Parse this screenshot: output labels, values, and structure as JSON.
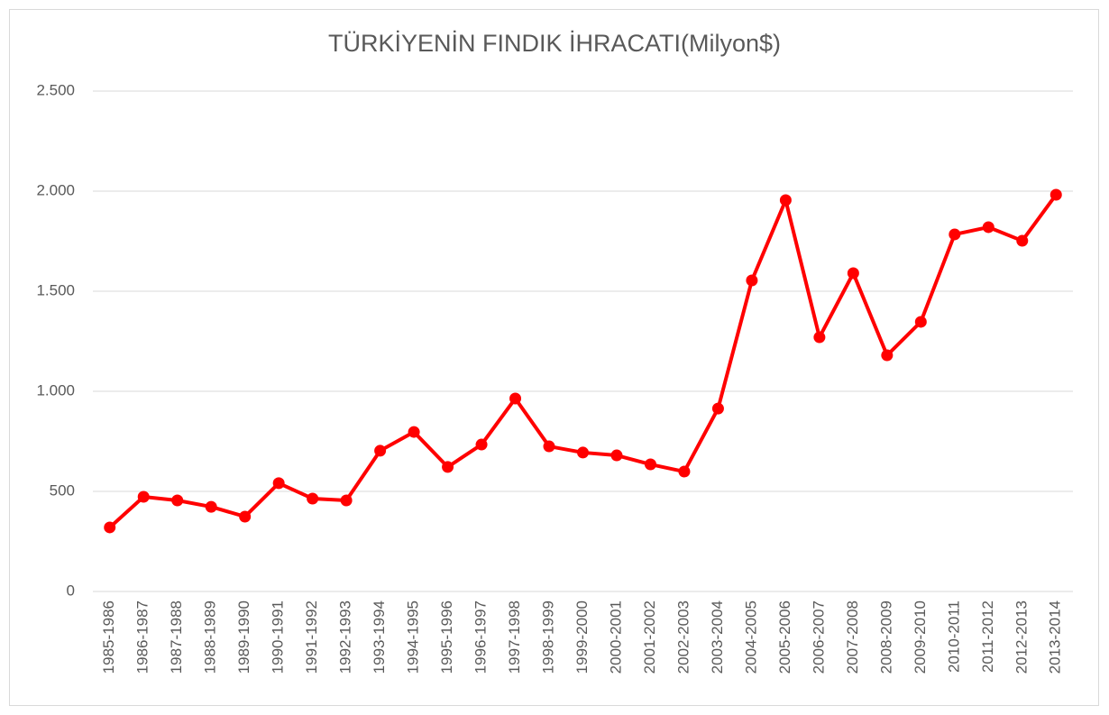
{
  "chart_data": {
    "type": "line",
    "title": "TÜRKİYENİN FINDIK İHRACATI(Milyon$)",
    "categories": [
      "1985-1986",
      "1986-1987",
      "1987-1988",
      "1988-1989",
      "1989-1990",
      "1990-1991",
      "1991-1992",
      "1992-1993",
      "1993-1994",
      "1994-1995",
      "1995-1996",
      "1996-1997",
      "1997-1998",
      "1998-1999",
      "1999-2000",
      "2000-2001",
      "2001-2002",
      "2002-2003",
      "2003-2004",
      "2004-2005",
      "2005-2006",
      "2006-2007",
      "2007-2008",
      "2008-2009",
      "2009-2010",
      "2010-2011",
      "2011-2012",
      "2012-2013",
      "2013-2014"
    ],
    "values": [
      320,
      473,
      455,
      423,
      374,
      541,
      464,
      455,
      703,
      797,
      622,
      734,
      964,
      725,
      694,
      680,
      635,
      599,
      914,
      1554,
      1955,
      1270,
      1590,
      1180,
      1347,
      1784,
      1820,
      1752,
      1982
    ],
    "color": "#ff0000",
    "ylim": [
      0,
      2500
    ],
    "yticks": [
      0,
      500,
      {
        "value": 1000,
        "label": "1.000"
      },
      {
        "value": 1500,
        "label": "1.500"
      },
      {
        "value": 2000,
        "label": "2.000"
      },
      {
        "value": 2500,
        "label": "2.500"
      }
    ],
    "grid": true
  }
}
